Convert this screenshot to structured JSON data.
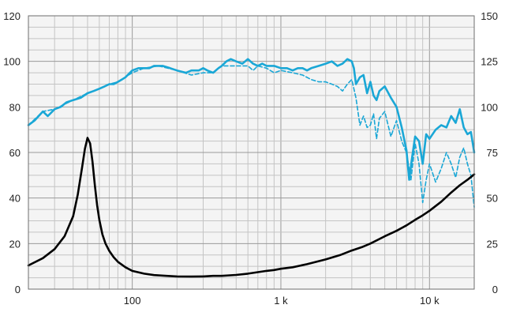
{
  "chart_data": {
    "type": "line",
    "title": "",
    "xlabel": "",
    "ylabel": "",
    "y2label": "",
    "x_scale": "log",
    "xlim": [
      20,
      20000
    ],
    "ylim": [
      0,
      120
    ],
    "y2lim": [
      0,
      150
    ],
    "grid": true,
    "x_tick_labels": [
      {
        "value": 100,
        "label": "100"
      },
      {
        "value": 1000,
        "label": "1 k"
      },
      {
        "value": 10000,
        "label": "10 k"
      }
    ],
    "y_tick_labels": [
      "0",
      "20",
      "40",
      "60",
      "80",
      "100",
      "120"
    ],
    "y2_tick_labels": [
      "0",
      "25",
      "50",
      "75",
      "100",
      "125",
      "150"
    ],
    "colors": {
      "response": "#1aa7d6",
      "response_off_axis": "#1aa7d6",
      "impedance": "#000000",
      "frame": "#6e6e6e",
      "grid_major": "#9a9a9a",
      "grid_minor": "#c4c4c4",
      "background": "#f4f4f4"
    },
    "series": [
      {
        "key": "response",
        "axis": "left",
        "style": "solid",
        "x": [
          20,
          22,
          25,
          27,
          28,
          30,
          33,
          36,
          40,
          45,
          50,
          55,
          60,
          65,
          70,
          75,
          80,
          85,
          90,
          100,
          110,
          120,
          130,
          140,
          150,
          160,
          180,
          200,
          230,
          250,
          280,
          300,
          320,
          350,
          380,
          400,
          430,
          460,
          500,
          550,
          600,
          650,
          700,
          750,
          800,
          900,
          1000,
          1100,
          1200,
          1300,
          1400,
          1500,
          1600,
          1800,
          2000,
          2200,
          2400,
          2600,
          2800,
          3000,
          3100,
          3200,
          3400,
          3600,
          3800,
          4000,
          4200,
          4400,
          4600,
          5000,
          5500,
          6000,
          6500,
          7000,
          7300,
          7600,
          8000,
          8500,
          9000,
          9500,
          10000,
          11000,
          12000,
          13000,
          14000,
          15000,
          16000,
          17000,
          18000,
          19000,
          20000
        ],
        "y": [
          72,
          74,
          78,
          76,
          77,
          79,
          80,
          82,
          83,
          84,
          86,
          87,
          88,
          89,
          90,
          90,
          91,
          92,
          93,
          96,
          97,
          97,
          97,
          98,
          98,
          98,
          97,
          96,
          95,
          96,
          96,
          97,
          96,
          95,
          97,
          98,
          100,
          101,
          100,
          99,
          101,
          99,
          98,
          99,
          98,
          98,
          97,
          97,
          96,
          97,
          97,
          96,
          97,
          98,
          99,
          100,
          98,
          99,
          101,
          100,
          97,
          90,
          93,
          94,
          86,
          91,
          85,
          83,
          87,
          89,
          84,
          80,
          71,
          61,
          48,
          57,
          67,
          65,
          55,
          68,
          66,
          70,
          72,
          71,
          76,
          73,
          79,
          71,
          68,
          69,
          60
        ]
      },
      {
        "key": "response_off_axis",
        "axis": "left",
        "style": "dashed",
        "x": [
          20,
          25,
          30,
          40,
          50,
          60,
          70,
          80,
          100,
          120,
          150,
          200,
          250,
          300,
          350,
          400,
          450,
          500,
          550,
          600,
          650,
          700,
          800,
          900,
          1000,
          1200,
          1400,
          1600,
          1800,
          2000,
          2200,
          2400,
          2600,
          2800,
          3000,
          3200,
          3400,
          3600,
          3800,
          4000,
          4200,
          4400,
          4600,
          5000,
          5500,
          6000,
          6500,
          7000,
          7500,
          8000,
          8500,
          9000,
          9500,
          10000,
          11000,
          12000,
          13000,
          14000,
          15000,
          16000,
          17000,
          18000,
          19000,
          20000
        ],
        "y": [
          72,
          78,
          79,
          83,
          86,
          88,
          90,
          91,
          95,
          97,
          98,
          96,
          94,
          95,
          95,
          98,
          98,
          98,
          98,
          98,
          96,
          98,
          97,
          95,
          96,
          95,
          94,
          92,
          91,
          91,
          90,
          89,
          87,
          90,
          92,
          84,
          72,
          76,
          71,
          72,
          77,
          66,
          75,
          78,
          67,
          74,
          65,
          60,
          48,
          64,
          55,
          38,
          48,
          55,
          47,
          53,
          60,
          55,
          49,
          58,
          62,
          55,
          50,
          36
        ]
      },
      {
        "key": "impedance",
        "axis": "right",
        "style": "solid",
        "x": [
          20,
          25,
          30,
          35,
          40,
          43,
          46,
          48,
          50,
          52,
          54,
          56,
          58,
          60,
          63,
          66,
          70,
          75,
          80,
          90,
          100,
          120,
          140,
          170,
          200,
          250,
          300,
          350,
          400,
          500,
          600,
          700,
          800,
          900,
          1000,
          1200,
          1500,
          2000,
          2500,
          3000,
          3500,
          4000,
          5000,
          6000,
          7000,
          8000,
          9000,
          10000,
          12000,
          14000,
          16000,
          18000,
          20000
        ],
        "y": [
          13,
          17,
          22,
          29,
          40,
          52,
          67,
          77,
          83,
          80,
          70,
          57,
          46,
          38,
          30,
          25,
          21,
          17.5,
          15,
          12,
          10,
          8.5,
          7.7,
          7.3,
          7.0,
          6.9,
          7.0,
          7.3,
          7.3,
          7.8,
          8.5,
          9.3,
          10,
          10.5,
          11.2,
          12,
          13.7,
          16.3,
          18.7,
          21.2,
          23,
          25,
          29,
          32,
          35,
          38,
          40.5,
          43,
          48,
          53,
          57,
          60,
          63
        ]
      }
    ]
  }
}
